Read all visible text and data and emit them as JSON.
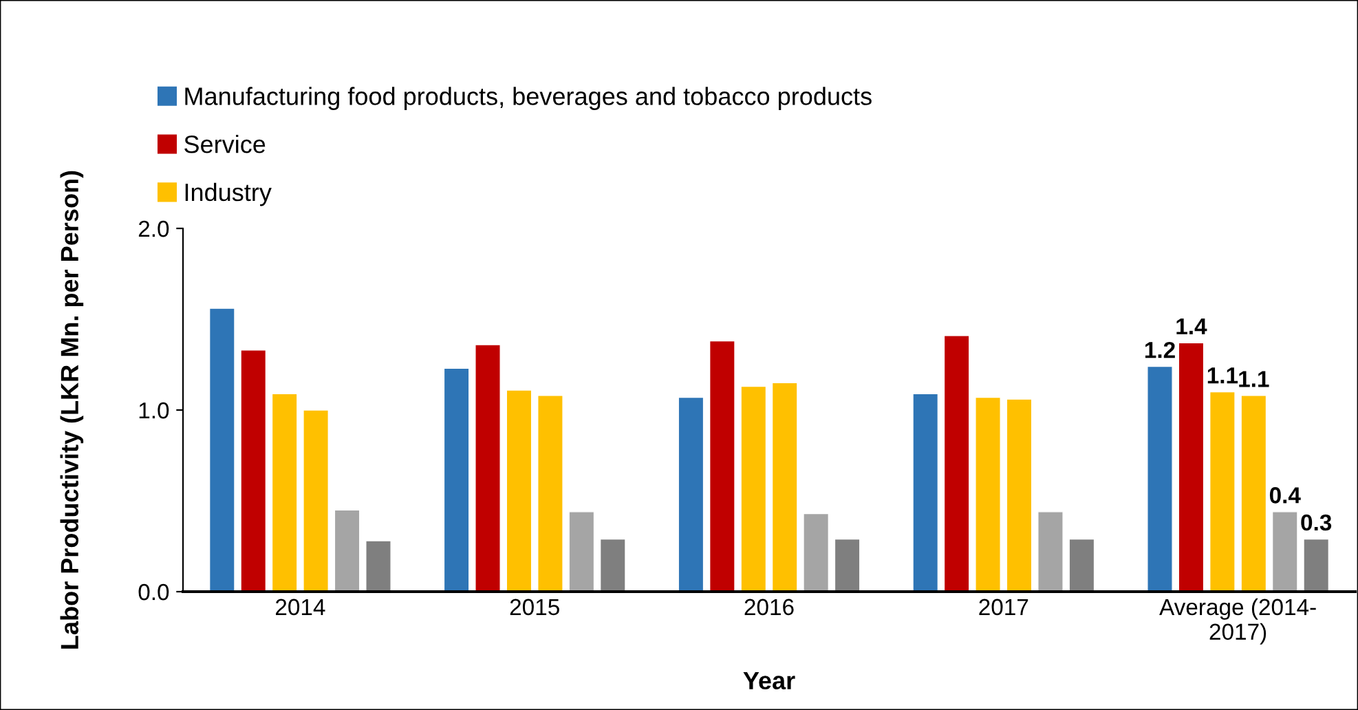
{
  "chart_data": {
    "type": "bar",
    "xlabel": "Year",
    "ylabel": "Labor Productivity (LKR Mn. per Person)",
    "categories": [
      "2014",
      "2015",
      "2016",
      "2017",
      "Average (2014-\n2017)"
    ],
    "series": [
      {
        "name": "Manufacturing food products, beverages and tobacco products",
        "color": "#2e75b6",
        "values": [
          1.56,
          1.23,
          1.07,
          1.09,
          1.24
        ],
        "value_labels": [
          null,
          null,
          null,
          null,
          "1.2"
        ]
      },
      {
        "name": "Service",
        "color": "#c00000",
        "values": [
          1.33,
          1.36,
          1.38,
          1.41,
          1.37
        ],
        "value_labels": [
          null,
          null,
          null,
          null,
          "1.4"
        ]
      },
      {
        "name": "Industry",
        "color": "#ffc000",
        "values": [
          1.09,
          1.11,
          1.13,
          1.07,
          1.1
        ],
        "value_labels": [
          null,
          null,
          null,
          null,
          "1.1"
        ]
      },
      {
        "color": "#ffc000",
        "values": [
          1.0,
          1.08,
          1.15,
          1.06,
          1.08
        ],
        "value_labels": [
          null,
          null,
          null,
          null,
          "1.1"
        ]
      },
      {
        "color": "#a5a5a5",
        "values": [
          0.45,
          0.44,
          0.43,
          0.44,
          0.44
        ],
        "value_labels": [
          null,
          null,
          null,
          null,
          "0.4"
        ]
      },
      {
        "color": "#7f7f7f",
        "values": [
          0.28,
          0.29,
          0.29,
          0.29,
          0.29
        ],
        "value_labels": [
          null,
          null,
          null,
          null,
          "0.3"
        ]
      }
    ],
    "ylim": [
      0,
      2
    ],
    "yticks": [
      {
        "value": 0,
        "label": "0.0"
      },
      {
        "value": 1,
        "label": "1.0"
      },
      {
        "value": 2,
        "label": "2.0"
      }
    ],
    "grid": false,
    "legend": "top left"
  }
}
